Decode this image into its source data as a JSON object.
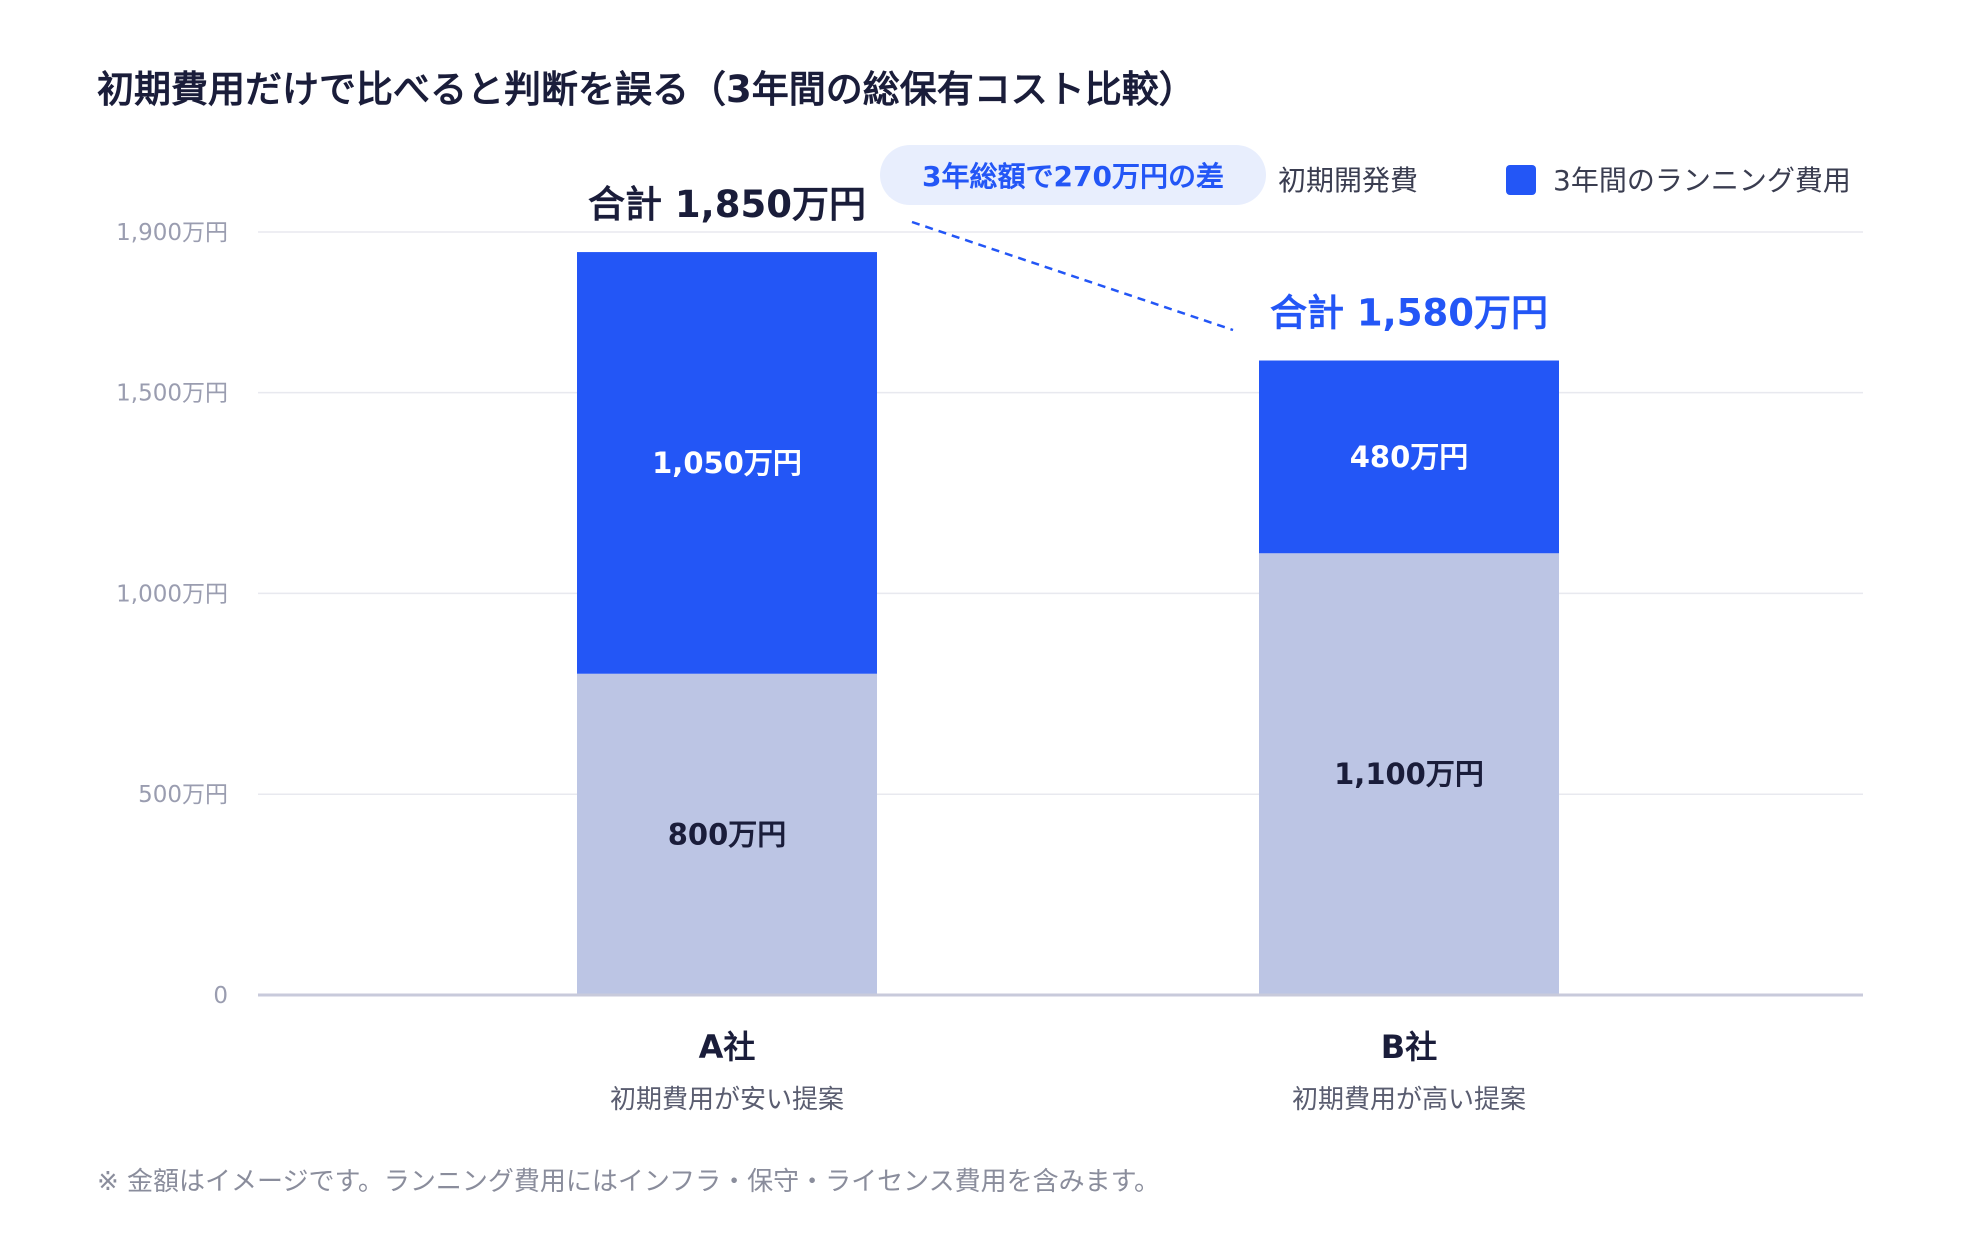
{
  "title": "初期費用だけで比べると判断を誤る（3年間の総保有コスト比較）",
  "footnote": "※ 金額はイメージです。ランニング費用にはインフラ・保守・ライセンス費用を含みます。",
  "callout": "3年総額で270万円の差",
  "colors": {
    "initial": "#bcc5e4",
    "running": "#2356f6",
    "accent": "#2356f6",
    "callout_bg": "#e8eefd",
    "text": "#1a1d3a"
  },
  "chart_data": {
    "type": "bar",
    "stacked": true,
    "title": "初期費用だけで比べると判断を誤る（3年間の総保有コスト比較）",
    "categories": [
      "A社",
      "B社"
    ],
    "category_subtitles": [
      "初期費用が安い提案",
      "初期費用が高い提案"
    ],
    "series": [
      {
        "name": "初期開発費",
        "values": [
          800,
          1100
        ],
        "labels": [
          "800万円",
          "1,100万円"
        ]
      },
      {
        "name": "3年間のランニング費用",
        "values": [
          1050,
          480
        ],
        "labels": [
          "1,050万円",
          "480万円"
        ]
      }
    ],
    "totals": [
      1850,
      1580
    ],
    "total_labels": [
      "合計 1,850万円",
      "合計 1,580万円"
    ],
    "y_ticks": [
      0,
      500,
      1000,
      1500,
      1900
    ],
    "y_tick_labels": [
      "0",
      "500万円",
      "1,000万円",
      "1,500万円",
      "1,900万円"
    ],
    "ylim": [
      0,
      1900
    ],
    "grid": true,
    "legend_position": "top-right",
    "annotation": "3年総額で270万円の差"
  }
}
